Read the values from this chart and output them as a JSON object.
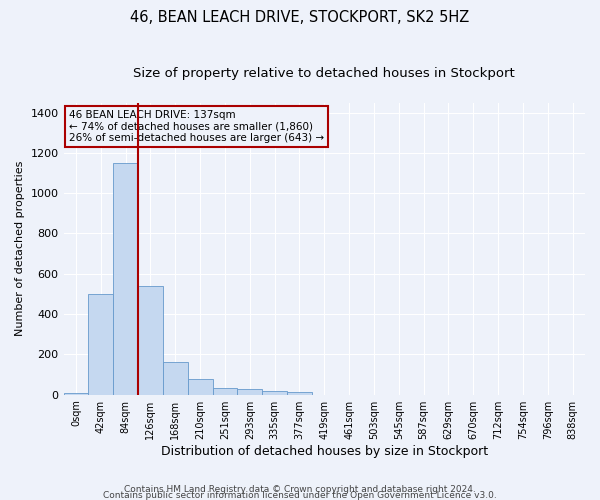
{
  "title": "46, BEAN LEACH DRIVE, STOCKPORT, SK2 5HZ",
  "subtitle": "Size of property relative to detached houses in Stockport",
  "xlabel": "Distribution of detached houses by size in Stockport",
  "ylabel": "Number of detached properties",
  "footnote1": "Contains HM Land Registry data © Crown copyright and database right 2024.",
  "footnote2": "Contains public sector information licensed under the Open Government Licence v3.0.",
  "annotation_line1": "46 BEAN LEACH DRIVE: 137sqm",
  "annotation_line2": "← 74% of detached houses are smaller (1,860)",
  "annotation_line3": "26% of semi-detached houses are larger (643) →",
  "bar_color": "#c5d8f0",
  "bar_edge_color": "#6699cc",
  "vline_color": "#aa0000",
  "vline_x": 2.5,
  "categories": [
    "0sqm",
    "42sqm",
    "84sqm",
    "126sqm",
    "168sqm",
    "210sqm",
    "251sqm",
    "293sqm",
    "335sqm",
    "377sqm",
    "419sqm",
    "461sqm",
    "503sqm",
    "545sqm",
    "587sqm",
    "629sqm",
    "670sqm",
    "712sqm",
    "754sqm",
    "796sqm",
    "838sqm"
  ],
  "bar_heights": [
    10,
    500,
    1150,
    540,
    160,
    80,
    35,
    27,
    18,
    15,
    0,
    0,
    0,
    0,
    0,
    0,
    0,
    0,
    0,
    0,
    0
  ],
  "ylim": [
    0,
    1450
  ],
  "yticks": [
    0,
    200,
    400,
    600,
    800,
    1000,
    1200,
    1400
  ],
  "background_color": "#eef2fa",
  "grid_color": "#ffffff",
  "title_fontsize": 10.5,
  "subtitle_fontsize": 9.5,
  "ylabel_fontsize": 8,
  "xlabel_fontsize": 9,
  "tick_fontsize": 8,
  "xtick_fontsize": 7,
  "annot_fontsize": 7.5,
  "footnote_fontsize": 6.5
}
